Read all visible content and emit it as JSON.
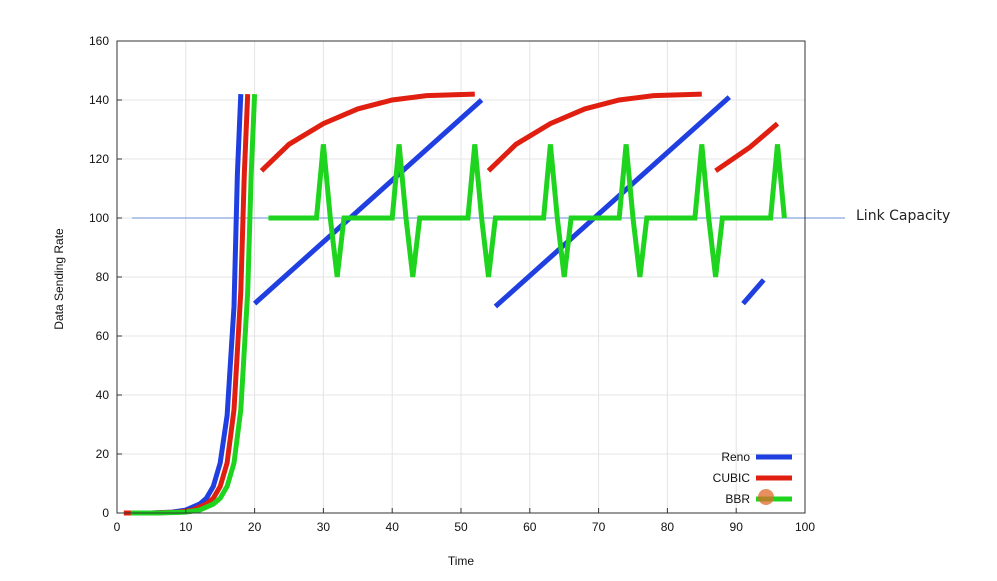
{
  "chart_data": {
    "type": "line",
    "xlabel": "Time",
    "ylabel": "Data Sending Rate",
    "xlim": [
      0,
      100
    ],
    "ylim": [
      0,
      160
    ],
    "xticks": [
      0,
      10,
      20,
      30,
      40,
      50,
      60,
      70,
      80,
      90,
      100
    ],
    "yticks": [
      0,
      20,
      40,
      60,
      80,
      100,
      120,
      140,
      160
    ],
    "grid": true,
    "legend_position": "bottom-right",
    "reference_line": {
      "y": 100,
      "label": "Link Capacity",
      "color": "#6b8fd6"
    },
    "series": [
      {
        "name": "Reno",
        "color": "#1f3fe0",
        "segments": [
          [
            [
              1,
              0
            ],
            [
              5,
              0
            ],
            [
              8,
              0.3
            ],
            [
              10,
              1
            ],
            [
              12,
              3
            ],
            [
              13,
              5
            ],
            [
              14,
              9
            ],
            [
              15,
              17
            ],
            [
              16,
              33
            ],
            [
              17,
              70
            ],
            [
              17.5,
              115
            ],
            [
              18,
              142
            ]
          ],
          [
            [
              20,
              71
            ],
            [
              53,
              140
            ]
          ],
          [
            [
              55,
              70
            ],
            [
              89,
              141
            ]
          ],
          [
            [
              91,
              71
            ],
            [
              94,
              79
            ]
          ]
        ]
      },
      {
        "name": "CUBIC",
        "color": "#e01f10",
        "segments": [
          [
            [
              1,
              0
            ],
            [
              5,
              0
            ],
            [
              9,
              0.3
            ],
            [
              11,
              1
            ],
            [
              13,
              3
            ],
            [
              14,
              5
            ],
            [
              15,
              9
            ],
            [
              16,
              17
            ],
            [
              17,
              35
            ],
            [
              18,
              75
            ],
            [
              18.5,
              115
            ],
            [
              19,
              142
            ]
          ],
          [
            [
              21,
              116
            ],
            [
              25,
              125
            ],
            [
              30,
              132
            ],
            [
              35,
              137
            ],
            [
              40,
              140
            ],
            [
              45,
              141.5
            ],
            [
              52,
              142
            ]
          ],
          [
            [
              54,
              116
            ],
            [
              58,
              125
            ],
            [
              63,
              132
            ],
            [
              68,
              137
            ],
            [
              73,
              140
            ],
            [
              78,
              141.5
            ],
            [
              85,
              142
            ]
          ],
          [
            [
              87,
              116
            ],
            [
              92,
              124
            ],
            [
              96,
              132
            ]
          ]
        ]
      },
      {
        "name": "BBR",
        "color": "#1ed41e",
        "segments": [
          [
            [
              2,
              0
            ],
            [
              6,
              0
            ],
            [
              10,
              0.3
            ],
            [
              12,
              1
            ],
            [
              14,
              3
            ],
            [
              15,
              5
            ],
            [
              16,
              9
            ],
            [
              17,
              17
            ],
            [
              18,
              35
            ],
            [
              19,
              75
            ],
            [
              19.5,
              115
            ],
            [
              20,
              142
            ]
          ],
          [
            [
              22,
              100
            ],
            [
              29,
              100
            ],
            [
              30,
              125
            ],
            [
              31,
              100
            ],
            [
              32,
              80
            ],
            [
              33,
              100
            ],
            [
              40,
              100
            ],
            [
              41,
              125
            ],
            [
              42,
              100
            ],
            [
              43,
              80
            ],
            [
              44,
              100
            ],
            [
              51,
              100
            ],
            [
              52,
              125
            ],
            [
              53,
              100
            ],
            [
              54,
              80
            ],
            [
              55,
              100
            ],
            [
              62,
              100
            ],
            [
              63,
              125
            ],
            [
              64,
              100
            ],
            [
              65,
              80
            ],
            [
              66,
              100
            ],
            [
              73,
              100
            ],
            [
              74,
              125
            ],
            [
              75,
              100
            ],
            [
              76,
              80
            ],
            [
              77,
              100
            ],
            [
              84,
              100
            ],
            [
              85,
              125
            ],
            [
              86,
              100
            ],
            [
              87,
              80
            ],
            [
              88,
              100
            ],
            [
              95,
              100
            ],
            [
              96,
              125
            ],
            [
              97,
              100
            ]
          ]
        ]
      }
    ]
  }
}
